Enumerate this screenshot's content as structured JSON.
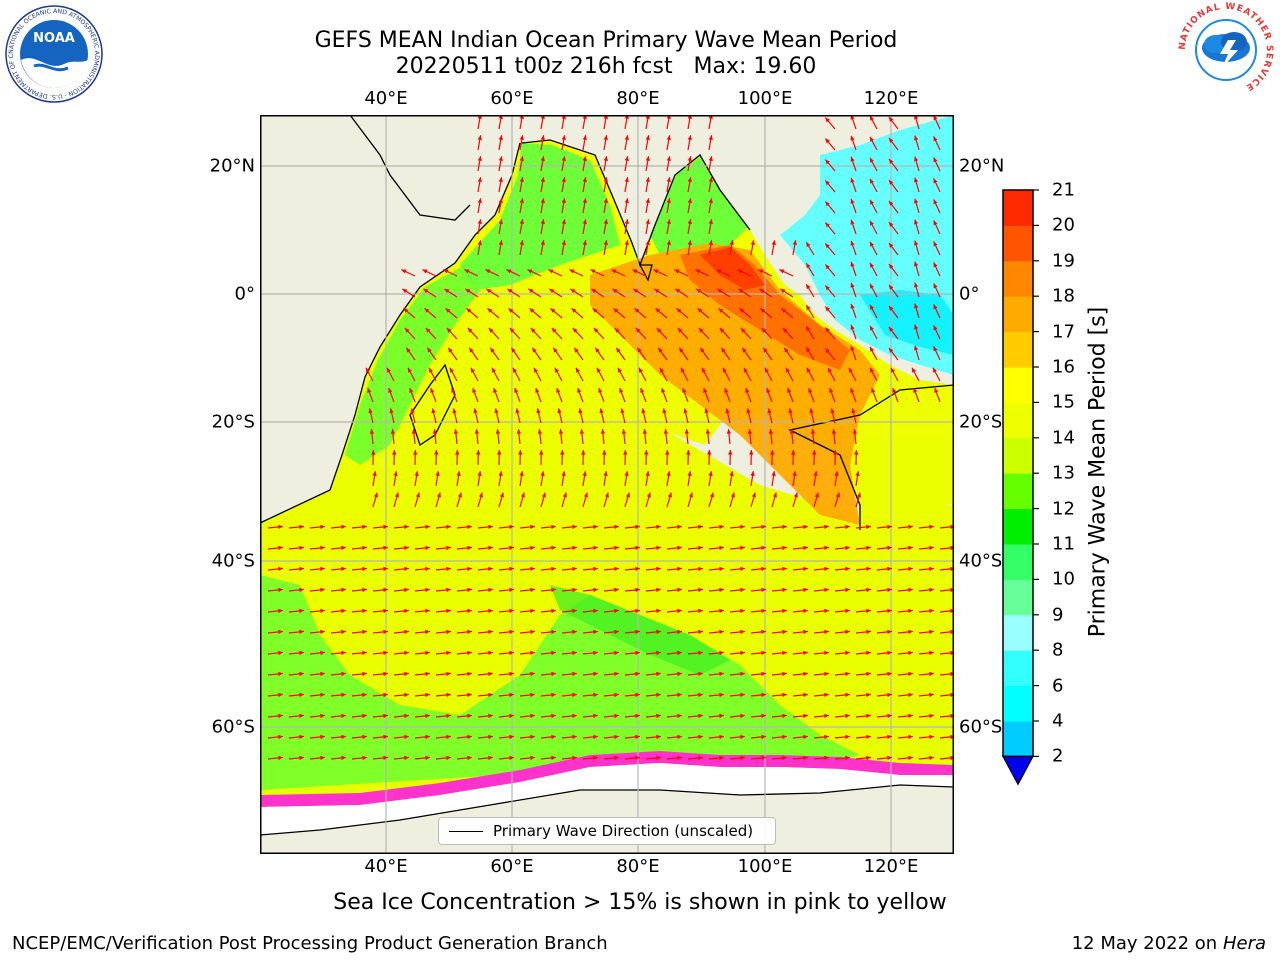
{
  "title": {
    "line1": "GEFS MEAN Indian Ocean Primary Wave Mean Period",
    "line2": "20220511 t00z 216h fcst   Max: 19.60"
  },
  "map": {
    "lon_labels": [
      "40°E",
      "60°E",
      "80°E",
      "100°E",
      "120°E"
    ],
    "lat_labels": [
      "20°N",
      "0°",
      "20°S",
      "40°S",
      "60°S"
    ],
    "land_color": "#efefdf",
    "ice_color": "#ffffff",
    "arrow_color": "#ff0000",
    "legend": {
      "label": "Primary Wave Direction (unscaled)"
    }
  },
  "colorbar": {
    "label": "Primary Wave Mean Period [s]",
    "ticks": [
      "2",
      "4",
      "6",
      "8",
      "9",
      "10",
      "11",
      "12",
      "13",
      "14",
      "15",
      "16",
      "17",
      "18",
      "19",
      "20",
      "21"
    ],
    "colors": [
      "#0066ff",
      "#00ccff",
      "#00ffff",
      "#33ffff",
      "#99ffff",
      "#66ff99",
      "#33ff66",
      "#00ee00",
      "#66ff00",
      "#ccff00",
      "#eeff00",
      "#ffff00",
      "#ffcc00",
      "#ffaa00",
      "#ff8800",
      "#ff5500",
      "#ff2a00",
      "#ff0000"
    ],
    "extend_color": "#0000ee"
  },
  "footer": {
    "note": "Sea Ice Concentration > 15% is shown in pink to yellow",
    "org": "NCEP/EMC/Verification Post Processing Product Generation Branch",
    "date": "12 May 2022 on",
    "machine": "Hera"
  },
  "logos": {
    "noaa_text": "NOAA",
    "noaa_ring": "NATIONAL OCEANIC AND ATMOSPHERIC ADMINISTRATION · U.S. DEPARTMENT OF COMMERCE",
    "nws_ring": "NATIONAL WEATHER SERVICE"
  }
}
